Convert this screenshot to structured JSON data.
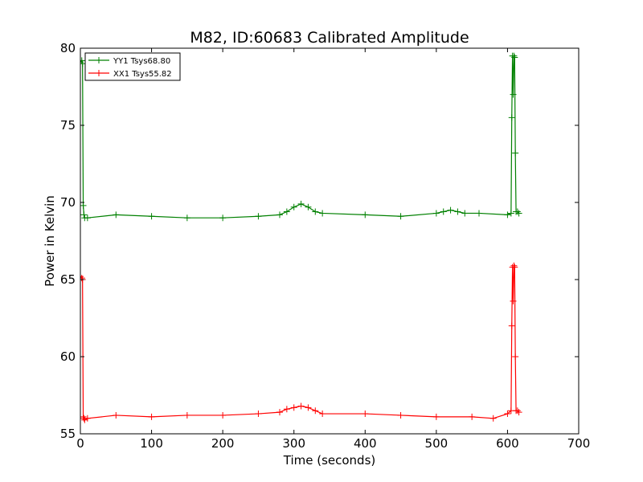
{
  "chart_data": {
    "type": "line",
    "title": "M82, ID:60683 Calibrated Amplitude",
    "xlabel": "Time (seconds)",
    "ylabel": "Power in Kelvin",
    "xlim": [
      0,
      700
    ],
    "ylim": [
      55,
      80
    ],
    "xticks": [
      0,
      100,
      200,
      300,
      400,
      500,
      600,
      700
    ],
    "yticks": [
      55,
      60,
      65,
      70,
      75,
      80
    ],
    "grid": false,
    "legend_position": "top-left",
    "marker": "plus",
    "series": [
      {
        "name": "YY1 Tsys68.80",
        "color": "#008000",
        "x": [
          0,
          2,
          3,
          4,
          5,
          6,
          10,
          50,
          100,
          150,
          200,
          250,
          280,
          290,
          300,
          310,
          320,
          330,
          340,
          400,
          450,
          500,
          510,
          520,
          530,
          540,
          560,
          600,
          605,
          606,
          607,
          608,
          609,
          610,
          611,
          612,
          614,
          616
        ],
        "y": [
          79.1,
          79.2,
          79.0,
          69.8,
          69.2,
          69.0,
          69.0,
          69.2,
          69.1,
          69.0,
          69.0,
          69.1,
          69.2,
          69.4,
          69.7,
          69.9,
          69.7,
          69.4,
          69.3,
          69.2,
          69.1,
          69.3,
          69.4,
          69.5,
          69.4,
          69.3,
          69.3,
          69.2,
          69.3,
          75.5,
          79.5,
          77.0,
          79.5,
          79.4,
          73.2,
          69.4,
          69.4,
          69.3
        ]
      },
      {
        "name": "XX1 Tsys55.82",
        "color": "#ff0000",
        "x": [
          0,
          2,
          3,
          4,
          5,
          6,
          10,
          50,
          100,
          150,
          200,
          250,
          280,
          290,
          300,
          310,
          320,
          330,
          340,
          400,
          450,
          500,
          550,
          580,
          600,
          605,
          606,
          607,
          608,
          609,
          610,
          611,
          612,
          614,
          616
        ],
        "y": [
          65.2,
          65.1,
          65.0,
          56.1,
          56.0,
          55.9,
          56.0,
          56.2,
          56.1,
          56.2,
          56.2,
          56.3,
          56.4,
          56.6,
          56.7,
          56.8,
          56.7,
          56.5,
          56.3,
          56.3,
          56.2,
          56.1,
          56.1,
          56.0,
          56.3,
          56.5,
          62.0,
          65.8,
          63.6,
          65.9,
          65.8,
          60.0,
          56.5,
          56.5,
          56.4
        ]
      }
    ]
  }
}
